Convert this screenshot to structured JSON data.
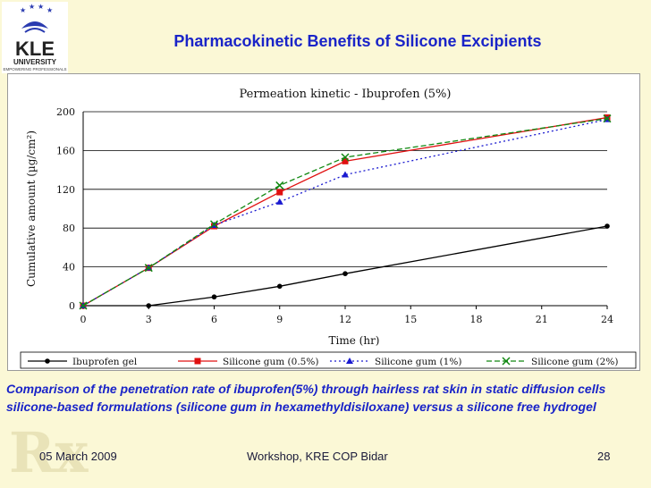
{
  "slide": {
    "title": "Pharmacokinetic Benefits of Silicone Excipients",
    "caption": "Comparison of the penetration rate of ibuprofen(5%) through hairless rat skin in static diffusion cells silicone-based formulations (silicone gum in hexamethyldisiloxane) versus a silicone free hydrogel",
    "footer_date": "05 March 2009",
    "footer_center": "Workshop, KRE COP Bidar",
    "page_number": "28",
    "logo_text": "KLE",
    "logo_sub": "UNIVERSITY",
    "logo_tag": "EMPOWERING PROFESSIONALS",
    "watermark": "Rx"
  },
  "chart_data": {
    "type": "line",
    "title": "Permeation kinetic - Ibuprofen (5%)",
    "xlabel": "Time (hr)",
    "ylabel": "Cumulative amount (µg/cm²)",
    "xlim": [
      0,
      24
    ],
    "ylim": [
      0,
      200
    ],
    "xticks": [
      0,
      3,
      6,
      9,
      12,
      15,
      18,
      21,
      24
    ],
    "yticks": [
      0,
      40,
      80,
      120,
      160,
      200
    ],
    "grid": "horizontal",
    "legend_position": "bottom",
    "series": [
      {
        "name": "Ibuprofen gel",
        "color": "#000000",
        "marker": "circle",
        "dash": "solid",
        "x": [
          0,
          3,
          6,
          9,
          12,
          24
        ],
        "y": [
          0,
          0,
          9,
          20,
          33,
          82
        ]
      },
      {
        "name": "Silicone gum (0.5%)",
        "color": "#e01010",
        "marker": "square",
        "dash": "solid",
        "x": [
          0,
          3,
          6,
          9,
          12,
          24
        ],
        "y": [
          0,
          39,
          82,
          117,
          149,
          194
        ]
      },
      {
        "name": "Silicone gum (1%)",
        "color": "#1a1ad0",
        "marker": "triangle",
        "dash": "dotted",
        "x": [
          0,
          3,
          6,
          9,
          12,
          24
        ],
        "y": [
          0,
          39,
          83,
          107,
          135,
          192
        ]
      },
      {
        "name": "Silicone gum (2%)",
        "color": "#118811",
        "marker": "x",
        "dash": "dashed",
        "x": [
          0,
          3,
          6,
          9,
          12,
          24
        ],
        "y": [
          0,
          39,
          84,
          124,
          153,
          193
        ]
      }
    ]
  }
}
